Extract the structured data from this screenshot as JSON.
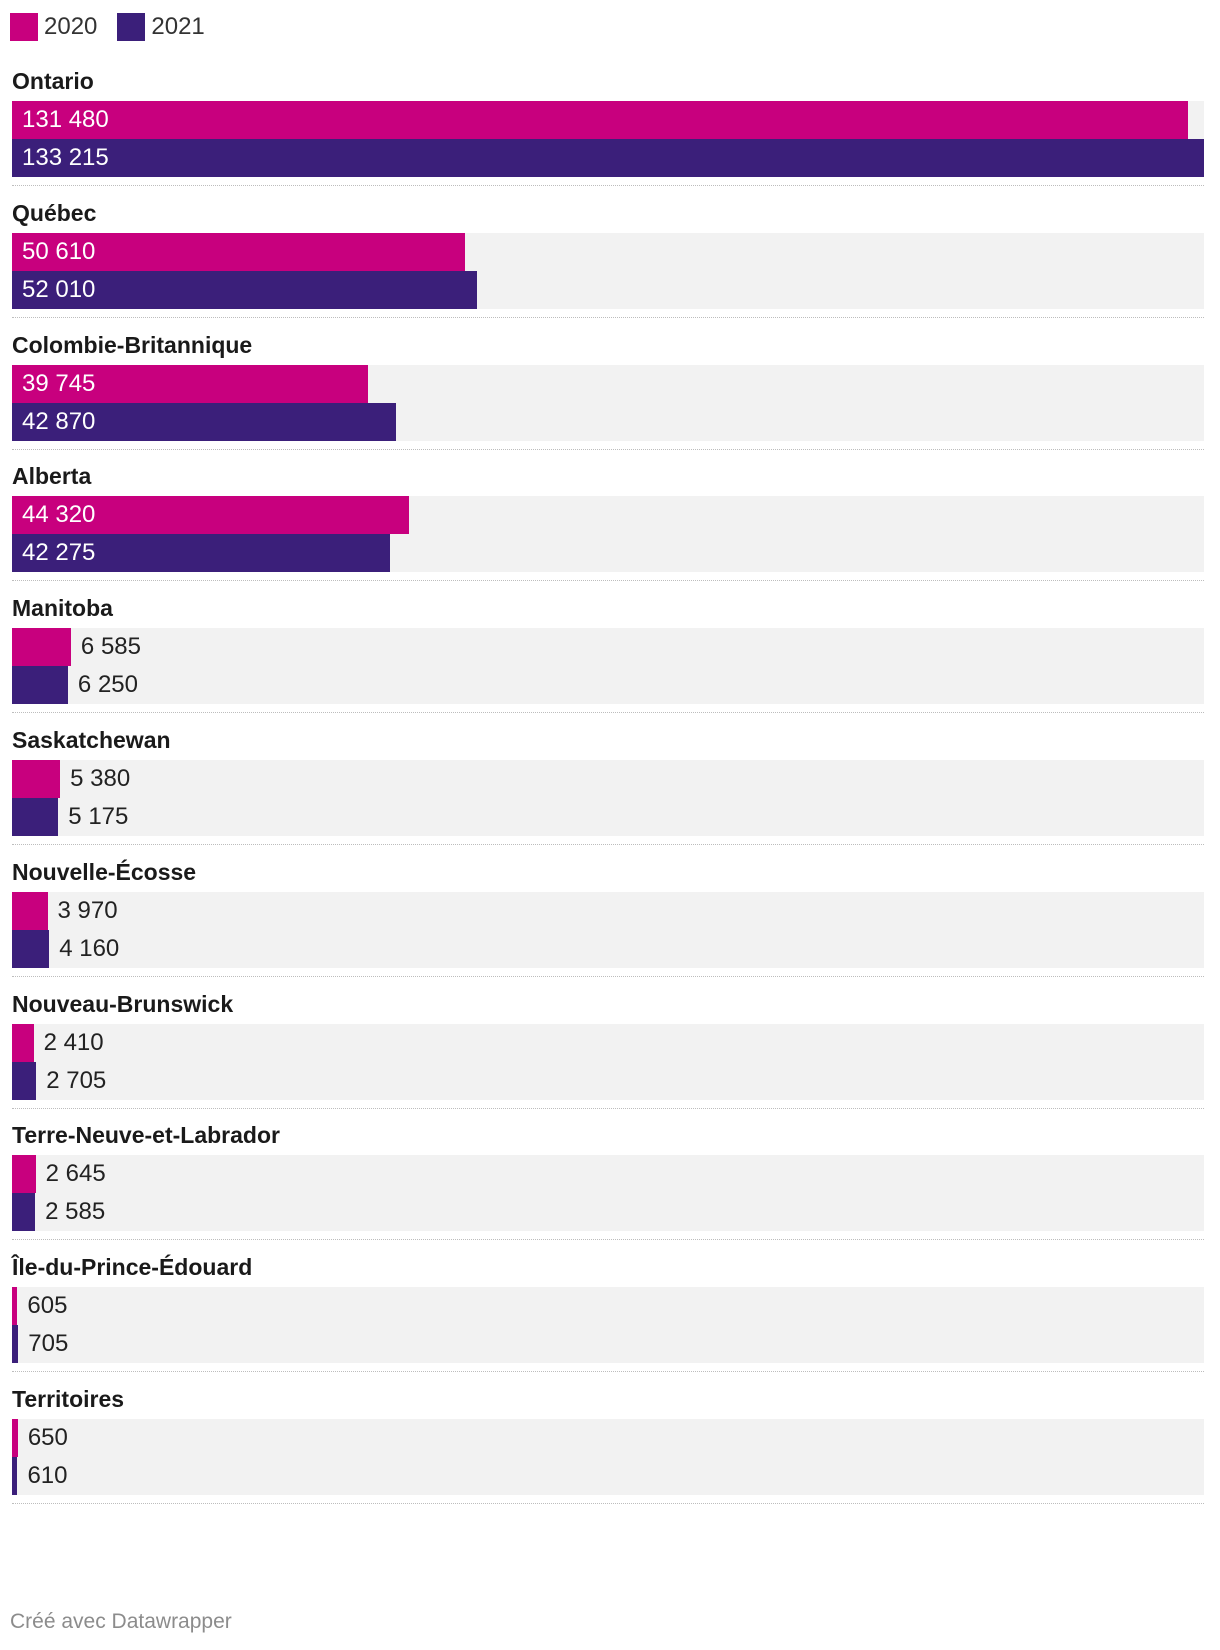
{
  "chart_data": {
    "type": "bar",
    "orientation": "horizontal",
    "grouped": true,
    "series": [
      {
        "name": "2020",
        "color": "#c8007e",
        "values": [
          131480,
          50610,
          39745,
          44320,
          6585,
          5380,
          3970,
          2410,
          2645,
          605,
          650
        ]
      },
      {
        "name": "2021",
        "color": "#3b1f7a",
        "values": [
          133215,
          52010,
          42870,
          42275,
          6250,
          5175,
          4160,
          2705,
          2585,
          705,
          610
        ]
      }
    ],
    "categories": [
      "Ontario",
      "Québec",
      "Colombie-Britannique",
      "Alberta",
      "Manitoba",
      "Saskatchewan",
      "Nouvelle-Écosse",
      "Nouveau-Brunswick",
      "Terre-Neuve-et-Labrador",
      "Île-du-Prince-Édouard",
      "Territoires"
    ],
    "value_labels": {
      "2020": [
        "131 480",
        "50 610",
        "39 745",
        "44 320",
        "6 585",
        "5 380",
        "3 970",
        "2 410",
        "2 645",
        "605",
        "650"
      ],
      "2021": [
        "133 215",
        "52 010",
        "42 870",
        "42 275",
        "6 250",
        "5 175",
        "4 160",
        "2 705",
        "2 585",
        "705",
        "610"
      ]
    },
    "xlim": [
      0,
      133215
    ],
    "title": "",
    "xlabel": "",
    "ylabel": "",
    "legend_position": "top-left"
  },
  "footer": {
    "credit": "Créé avec Datawrapper"
  }
}
